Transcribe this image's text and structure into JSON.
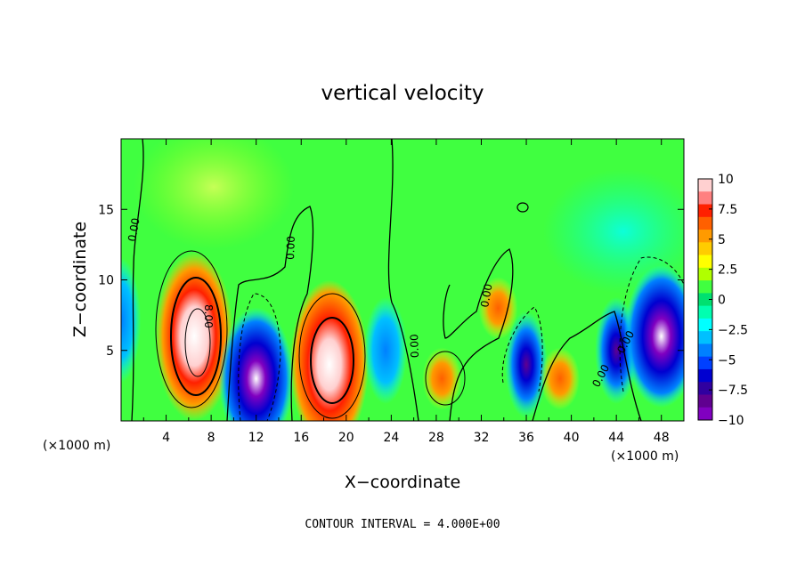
{
  "chart_data": {
    "type": "heatmap",
    "title": "vertical velocity",
    "xlabel": "X−coordinate",
    "ylabel": "Z−coordinate",
    "x_unit_label": "(×1000 m)",
    "annotation": "CONTOUR INTERVAL = 4.000E+00",
    "xlim": [
      0,
      50
    ],
    "ylim": [
      0,
      20
    ],
    "x_ticks": [
      "4",
      "8",
      "12",
      "16",
      "20",
      "24",
      "28",
      "32",
      "36",
      "40",
      "44",
      "48"
    ],
    "x_tick_values": [
      4,
      8,
      12,
      16,
      20,
      24,
      28,
      32,
      36,
      40,
      44,
      48
    ],
    "y_ticks": [
      "5",
      "10",
      "15"
    ],
    "y_tick_values": [
      5,
      10,
      15
    ],
    "colorbar": {
      "min": -10,
      "max": 10,
      "tick_labels": [
        "10",
        "7.5",
        "5",
        "2.5",
        "0",
        "−2.5",
        "−5",
        "−7.5",
        "−10"
      ],
      "tick_values": [
        10,
        7.5,
        5,
        2.5,
        0,
        -2.5,
        -5,
        -7.5,
        -10
      ],
      "colors": [
        "#ffd0d0",
        "#ff8080",
        "#ff2000",
        "#ff6000",
        "#ff9a00",
        "#ffcc00",
        "#ffff00",
        "#b0ff00",
        "#40ff40",
        "#00e070",
        "#00ffb0",
        "#00ffff",
        "#00c0ff",
        "#0080ff",
        "#0040ff",
        "#0000d0",
        "#3000a0",
        "#600090",
        "#8000c0"
      ]
    },
    "contour_labels": [
      "0.00",
      "0.00",
      "0.00",
      "8.00",
      "0.00",
      "0.00",
      "0.00"
    ],
    "features": [
      {
        "type": "updraft",
        "x": 6.5,
        "z": 6,
        "peak": 14
      },
      {
        "type": "downdraft",
        "x": 12,
        "z": 3,
        "peak": -10
      },
      {
        "type": "updraft",
        "x": 18.5,
        "z": 4,
        "peak": 11
      },
      {
        "type": "downdraft",
        "x": 23.5,
        "z": 5,
        "peak": -5
      },
      {
        "type": "updraft",
        "x": 28.5,
        "z": 3,
        "peak": 6
      },
      {
        "type": "updraft",
        "x": 33.5,
        "z": 8,
        "peak": 5
      },
      {
        "type": "downdraft",
        "x": 36,
        "z": 4,
        "peak": -9
      },
      {
        "type": "updraft",
        "x": 39,
        "z": 3,
        "peak": 5
      },
      {
        "type": "downdraft",
        "x": 44,
        "z": 5,
        "peak": -8
      },
      {
        "type": "downdraft",
        "x": 48,
        "z": 6,
        "peak": -11
      }
    ]
  }
}
